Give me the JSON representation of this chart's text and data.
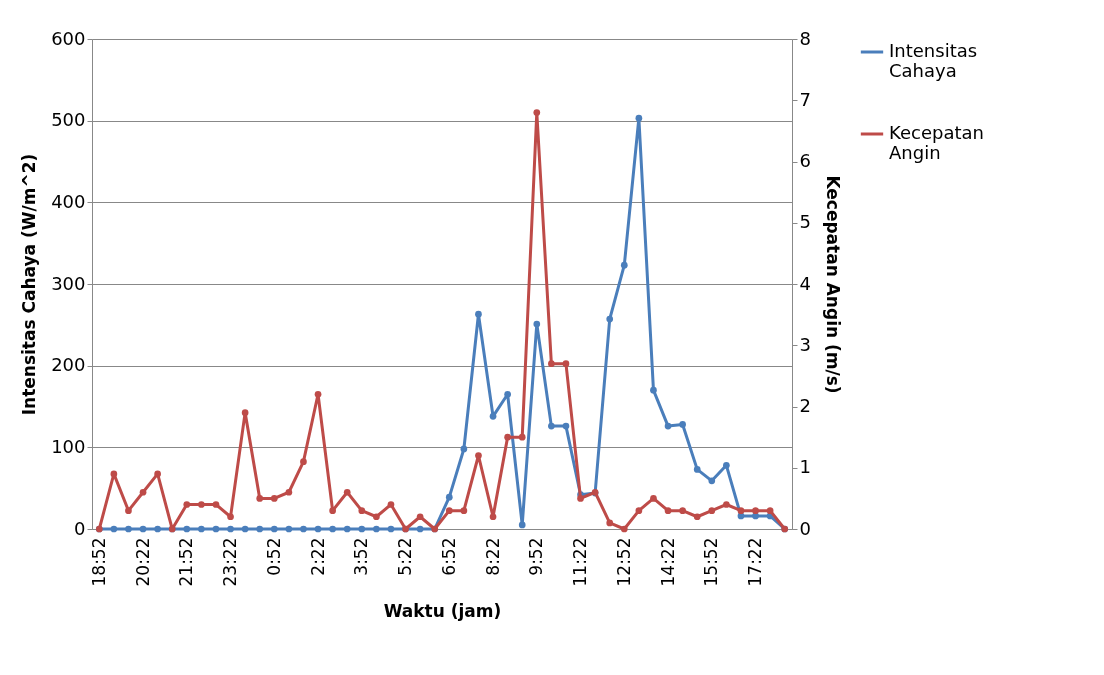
{
  "chart_data": {
    "type": "line",
    "xlabel": "Waktu (jam)",
    "ylabel": "Intensitas Cahaya (W/m^2)",
    "y2label": "Kecepatan Angin (m/s)",
    "categories": [
      "18:52",
      null,
      null,
      "20:22",
      null,
      null,
      "21:52",
      null,
      null,
      "23:22",
      null,
      null,
      "0:52",
      null,
      null,
      "2:22",
      null,
      null,
      "3:52",
      null,
      null,
      "5:22",
      null,
      null,
      "6:52",
      null,
      null,
      "8:22",
      null,
      null,
      "9:52",
      null,
      null,
      "11:22",
      null,
      null,
      "12:52",
      null,
      null,
      "14:22",
      null,
      null,
      "15:52",
      null,
      null,
      "17:22",
      null,
      null
    ],
    "series": [
      {
        "name": "Intensitas Cahaya",
        "color": "#4a7ebb",
        "values": [
          0,
          0,
          0,
          0,
          0,
          0,
          0,
          0,
          0,
          0,
          0,
          0,
          0,
          0,
          0,
          0,
          0,
          0,
          0,
          0,
          0,
          0,
          0,
          0,
          39,
          98,
          263,
          138,
          165,
          5,
          251,
          126,
          126,
          42,
          44,
          257,
          323,
          503,
          170,
          126,
          128,
          73,
          59,
          78,
          16,
          16,
          16,
          0
        ]
      },
      {
        "name": "Kecepatan Angin",
        "color": "#be4b48",
        "axis": "y2",
        "values": [
          0,
          0.9,
          0.3,
          0.6,
          0.9,
          0,
          0.4,
          0.4,
          0.4,
          0.2,
          1.9,
          0.5,
          0.5,
          0.6,
          1.1,
          2.2,
          0.3,
          0.6,
          0.3,
          0.2,
          0.4,
          0,
          0.2,
          0,
          0.3,
          0.3,
          1.2,
          0.2,
          1.5,
          1.5,
          6.8,
          2.7,
          2.7,
          0.5,
          0.6,
          0.1,
          0,
          0.3,
          0.5,
          0.3,
          0.3,
          0.2,
          0.3,
          0.4,
          0.3,
          0.3,
          0.3,
          0
        ]
      }
    ],
    "ylim": [
      0,
      600
    ],
    "yticks": [
      0,
      100,
      200,
      300,
      400,
      500,
      600
    ],
    "y2lim": [
      0,
      8
    ],
    "y2ticks": [
      0,
      1,
      2,
      3,
      4,
      5,
      6,
      7,
      8
    ],
    "grid": "y",
    "legend": "right",
    "marker": "circle",
    "line_style": "solid"
  }
}
